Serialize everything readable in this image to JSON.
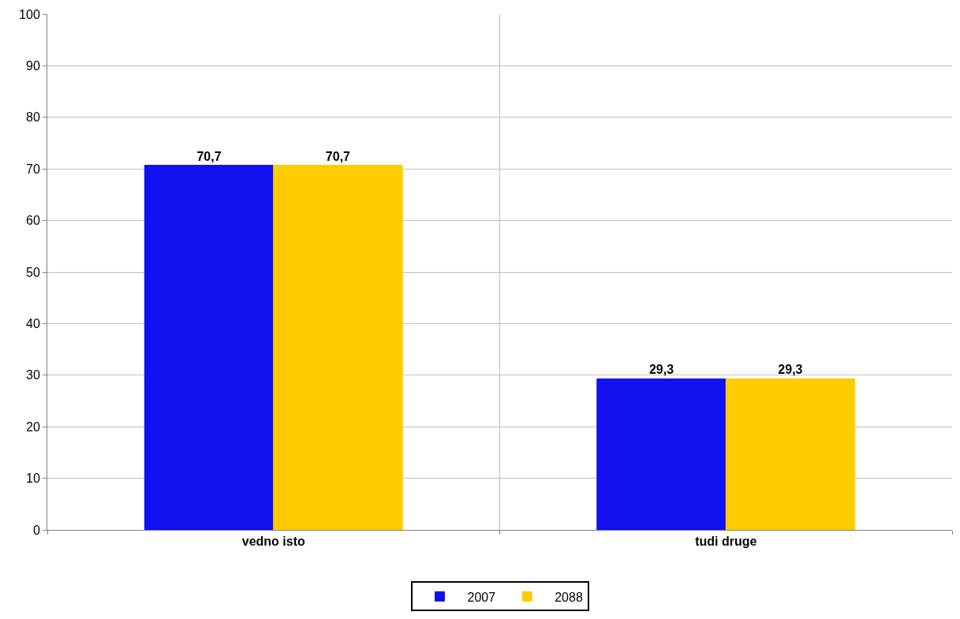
{
  "chart_data": {
    "type": "bar",
    "categories": [
      "vedno isto",
      "tudi druge"
    ],
    "series": [
      {
        "name": "2007",
        "color": "#1010f0",
        "values": [
          70.7,
          29.3
        ],
        "value_labels": [
          "70,7",
          "29,3"
        ]
      },
      {
        "name": "2088",
        "color": "#ffcc00",
        "values": [
          70.7,
          29.3
        ],
        "value_labels": [
          "70,7",
          "29,3"
        ]
      }
    ],
    "ylim": [
      0,
      100
    ],
    "yticks": [
      0,
      10,
      20,
      30,
      40,
      50,
      60,
      70,
      80,
      90,
      100
    ],
    "grid": true,
    "legend": "bottom"
  }
}
